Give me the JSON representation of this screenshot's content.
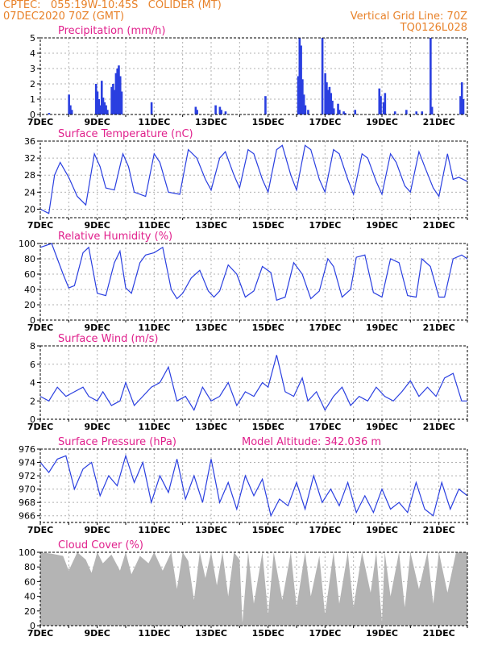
{
  "header": {
    "line1": "CPTEC:   055:19W-10:45S   COLIDER (MT)",
    "line2": "07DEC2020 70Z (GMT)",
    "right1": "Vertical Grid Line: 70Z",
    "right2": "TQ0126L028"
  },
  "colors": {
    "header": "#e8822a",
    "title": "#e0208c",
    "line": "#2a3fe0",
    "bar": "#2a3fe0",
    "cloud": "#b4b4b4",
    "grid": "#b0b0b0"
  },
  "chart_data": [
    {
      "type": "bar",
      "title": "Precipitation (mm/h)",
      "ylim": [
        0,
        5
      ],
      "yticks": [
        0,
        1,
        2,
        3,
        4,
        5
      ],
      "xlim": [
        7,
        22
      ],
      "xtick_labels": [
        "7DEC",
        "9DEC",
        "11DEC",
        "13DEC",
        "15DEC",
        "17DEC",
        "19DEC",
        "21DEC"
      ],
      "x": [
        7.3,
        8.0,
        8.05,
        8.1,
        8.95,
        9.0,
        9.05,
        9.1,
        9.15,
        9.2,
        9.25,
        9.3,
        9.35,
        9.5,
        9.55,
        9.6,
        9.65,
        9.7,
        9.75,
        9.8,
        9.85,
        10.9,
        12.45,
        12.5,
        13.15,
        13.3,
        13.35,
        13.5,
        14.9,
        16.05,
        16.1,
        16.15,
        16.2,
        16.25,
        16.3,
        16.4,
        16.9,
        17.0,
        17.05,
        17.1,
        17.15,
        17.2,
        17.25,
        17.3,
        17.45,
        17.5,
        17.65,
        17.7,
        18.05,
        18.9,
        18.95,
        19.05,
        19.1,
        19.45,
        19.85,
        20.2,
        20.4,
        20.7,
        20.75,
        21.75,
        21.8,
        21.85
      ],
      "values": [
        0.1,
        1.3,
        0.6,
        0.3,
        2.0,
        1.5,
        1.0,
        0.6,
        2.2,
        1.1,
        0.8,
        0.6,
        0.3,
        1.8,
        2.0,
        1.6,
        2.7,
        3.0,
        3.2,
        2.5,
        1.5,
        0.8,
        0.5,
        0.3,
        0.6,
        0.5,
        0.3,
        0.2,
        1.2,
        2.5,
        5.0,
        4.5,
        2.3,
        1.3,
        0.6,
        0.3,
        5.0,
        2.7,
        2.1,
        1.6,
        1.8,
        1.4,
        0.9,
        0.4,
        0.7,
        0.3,
        0.2,
        0.1,
        0.3,
        1.7,
        1.2,
        0.8,
        1.4,
        0.2,
        0.3,
        0.2,
        0.2,
        5.0,
        0.5,
        1.2,
        2.1,
        1.0
      ]
    },
    {
      "type": "line",
      "title": "Surface Temperature (nC)",
      "ylim": [
        18,
        36
      ],
      "yticks": [
        20,
        24,
        28,
        32,
        36
      ],
      "xlim": [
        7,
        22
      ],
      "xtick_labels": [
        "7DEC",
        "9DEC",
        "11DEC",
        "13DEC",
        "15DEC",
        "17DEC",
        "19DEC",
        "21DEC"
      ],
      "x": [
        7.0,
        7.3,
        7.5,
        7.7,
        8.0,
        8.3,
        8.6,
        8.9,
        9.1,
        9.3,
        9.6,
        9.9,
        10.1,
        10.3,
        10.7,
        11.0,
        11.2,
        11.5,
        11.9,
        12.2,
        12.5,
        12.8,
        13.0,
        13.3,
        13.5,
        13.8,
        14.0,
        14.3,
        14.5,
        14.8,
        15.0,
        15.3,
        15.5,
        15.8,
        16.0,
        16.3,
        16.5,
        16.8,
        17.0,
        17.3,
        17.5,
        17.8,
        18.0,
        18.3,
        18.5,
        18.8,
        19.0,
        19.3,
        19.5,
        19.8,
        20.0,
        20.3,
        20.5,
        20.8,
        21.0,
        21.3,
        21.5,
        21.7,
        22.0
      ],
      "values": [
        20.0,
        19.0,
        28.0,
        31.0,
        27.5,
        23.0,
        21.0,
        33.0,
        30.0,
        25.0,
        24.5,
        33.0,
        30.0,
        24.0,
        23.0,
        33.0,
        31.0,
        24.0,
        23.5,
        34.0,
        32.0,
        27.0,
        24.5,
        32.0,
        33.5,
        28.0,
        25.0,
        34.0,
        33.0,
        27.0,
        24.0,
        34.0,
        35.0,
        28.0,
        24.5,
        35.0,
        34.0,
        27.0,
        24.0,
        34.0,
        33.0,
        27.0,
        23.5,
        33.0,
        32.0,
        26.5,
        23.5,
        33.0,
        31.0,
        25.5,
        24.0,
        33.5,
        30.0,
        25.0,
        23.0,
        33.0,
        27.0,
        27.5,
        26.5
      ]
    },
    {
      "type": "line",
      "title": "Relative Humidity (%)",
      "ylim": [
        0,
        100
      ],
      "yticks": [
        0,
        20,
        40,
        60,
        80,
        100
      ],
      "xlim": [
        7,
        22
      ],
      "xtick_labels": [
        "7DEC",
        "9DEC",
        "11DEC",
        "13DEC",
        "15DEC",
        "17DEC",
        "19DEC",
        "21DEC"
      ],
      "x": [
        7.0,
        7.4,
        7.8,
        8.0,
        8.2,
        8.5,
        8.7,
        9.0,
        9.3,
        9.6,
        9.8,
        10.0,
        10.2,
        10.5,
        10.7,
        11.0,
        11.3,
        11.6,
        11.8,
        12.0,
        12.3,
        12.6,
        12.9,
        13.1,
        13.3,
        13.6,
        13.9,
        14.2,
        14.5,
        14.8,
        15.1,
        15.3,
        15.6,
        15.9,
        16.2,
        16.5,
        16.8,
        17.1,
        17.3,
        17.6,
        17.9,
        18.1,
        18.4,
        18.7,
        19.0,
        19.3,
        19.6,
        19.9,
        20.2,
        20.4,
        20.7,
        21.0,
        21.2,
        21.5,
        21.8,
        22.0
      ],
      "values": [
        95.0,
        100.0,
        60.0,
        42.0,
        45.0,
        88.0,
        95.0,
        35.0,
        32.0,
        75.0,
        90.0,
        42.0,
        35.0,
        75.0,
        85.0,
        88.0,
        95.0,
        40.0,
        28.0,
        35.0,
        55.0,
        65.0,
        38.0,
        30.0,
        38.0,
        72.0,
        60.0,
        30.0,
        38.0,
        70.0,
        62.0,
        26.0,
        30.0,
        75.0,
        60.0,
        28.0,
        38.0,
        80.0,
        70.0,
        30.0,
        40.0,
        82.0,
        85.0,
        36.0,
        30.0,
        80.0,
        75.0,
        32.0,
        30.0,
        80.0,
        70.0,
        30.0,
        30.0,
        80.0,
        85.0,
        80.0
      ]
    },
    {
      "type": "line",
      "title": "Surface Wind (m/s)",
      "ylim": [
        0,
        8
      ],
      "yticks": [
        0,
        2,
        4,
        6,
        8
      ],
      "xlim": [
        7,
        22
      ],
      "xtick_labels": [
        "7DEC",
        "9DEC",
        "11DEC",
        "13DEC",
        "15DEC",
        "17DEC",
        "19DEC",
        "21DEC"
      ],
      "x": [
        7.0,
        7.3,
        7.6,
        7.9,
        8.2,
        8.5,
        8.7,
        9.0,
        9.2,
        9.5,
        9.8,
        10.0,
        10.3,
        10.6,
        10.9,
        11.2,
        11.5,
        11.8,
        12.1,
        12.4,
        12.7,
        13.0,
        13.3,
        13.6,
        13.9,
        14.2,
        14.5,
        14.8,
        15.0,
        15.3,
        15.6,
        15.9,
        16.2,
        16.4,
        16.7,
        17.0,
        17.3,
        17.6,
        17.9,
        18.2,
        18.5,
        18.8,
        19.1,
        19.4,
        19.7,
        20.0,
        20.3,
        20.6,
        20.9,
        21.2,
        21.5,
        21.8,
        22.0
      ],
      "values": [
        2.5,
        2.0,
        3.5,
        2.5,
        3.0,
        3.5,
        2.5,
        2.0,
        3.0,
        1.5,
        2.0,
        4.0,
        1.5,
        2.5,
        3.5,
        4.0,
        5.7,
        2.0,
        2.5,
        1.0,
        3.5,
        2.0,
        2.5,
        4.0,
        1.5,
        3.0,
        2.5,
        4.0,
        3.5,
        7.0,
        3.0,
        2.5,
        4.5,
        2.0,
        3.0,
        1.0,
        2.5,
        3.5,
        1.5,
        2.5,
        2.0,
        3.5,
        2.5,
        2.0,
        3.0,
        4.2,
        2.5,
        3.5,
        2.5,
        4.5,
        5.0,
        2.0,
        2.0
      ]
    },
    {
      "type": "line",
      "title": "Surface Pressure (hPa)",
      "annotation": "Model Altitude: 342.036 m",
      "ylim": [
        965,
        976
      ],
      "yticks": [
        966,
        968,
        970,
        972,
        974,
        976
      ],
      "xlim": [
        7,
        22
      ],
      "xtick_labels": [
        "7DEC",
        "9DEC",
        "11DEC",
        "13DEC",
        "15DEC",
        "17DEC",
        "19DEC",
        "21DEC"
      ],
      "x": [
        7.0,
        7.3,
        7.6,
        7.9,
        8.2,
        8.5,
        8.8,
        9.1,
        9.4,
        9.7,
        10.0,
        10.3,
        10.6,
        10.9,
        11.2,
        11.5,
        11.8,
        12.1,
        12.4,
        12.7,
        13.0,
        13.3,
        13.6,
        13.9,
        14.2,
        14.5,
        14.8,
        15.1,
        15.4,
        15.7,
        16.0,
        16.3,
        16.6,
        16.9,
        17.2,
        17.5,
        17.8,
        18.1,
        18.4,
        18.7,
        19.0,
        19.3,
        19.6,
        19.9,
        20.2,
        20.5,
        20.8,
        21.1,
        21.4,
        21.7,
        22.0
      ],
      "values": [
        974.0,
        972.5,
        974.5,
        975.0,
        970.0,
        973.0,
        974.0,
        969.0,
        972.0,
        970.5,
        975.0,
        971.0,
        974.0,
        968.0,
        972.0,
        969.5,
        974.5,
        968.5,
        972.0,
        968.0,
        974.5,
        968.0,
        971.0,
        967.0,
        972.0,
        969.0,
        971.5,
        966.0,
        968.5,
        967.5,
        971.0,
        967.0,
        972.0,
        968.0,
        970.0,
        967.5,
        971.0,
        966.5,
        969.0,
        966.5,
        970.0,
        967.0,
        968.0,
        966.5,
        971.0,
        967.0,
        966.0,
        971.0,
        967.0,
        970.0,
        969.0
      ]
    },
    {
      "type": "area",
      "title": "Cloud Cover (%)",
      "ylim": [
        0,
        100
      ],
      "yticks": [
        0,
        20,
        40,
        60,
        80,
        100
      ],
      "xlim": [
        7,
        22
      ],
      "xtick_labels": [
        "7DEC",
        "9DEC",
        "11DEC",
        "13DEC",
        "15DEC",
        "17DEC",
        "19DEC",
        "21DEC"
      ],
      "x": [
        7.0,
        7.4,
        7.8,
        8.0,
        8.3,
        8.6,
        8.8,
        9.0,
        9.2,
        9.5,
        9.8,
        10.0,
        10.2,
        10.5,
        10.8,
        11.0,
        11.3,
        11.6,
        11.8,
        12.0,
        12.2,
        12.4,
        12.6,
        12.8,
        13.0,
        13.2,
        13.4,
        13.6,
        13.8,
        14.0,
        14.1,
        14.3,
        14.5,
        14.8,
        15.0,
        15.2,
        15.5,
        15.8,
        16.0,
        16.3,
        16.5,
        16.8,
        17.0,
        17.3,
        17.5,
        17.8,
        18.0,
        18.3,
        18.6,
        18.8,
        19.0,
        19.1,
        19.3,
        19.6,
        19.8,
        20.0,
        20.3,
        20.6,
        20.8,
        21.0,
        21.3,
        21.6,
        22.0
      ],
      "values": [
        100,
        98,
        95,
        75,
        100,
        90,
        72,
        100,
        85,
        97,
        75,
        100,
        70,
        95,
        85,
        100,
        75,
        100,
        50,
        100,
        88,
        35,
        100,
        65,
        100,
        55,
        100,
        40,
        100,
        90,
        4,
        100,
        30,
        100,
        15,
        100,
        35,
        100,
        25,
        100,
        40,
        95,
        15,
        100,
        30,
        100,
        25,
        100,
        45,
        100,
        5,
        100,
        40,
        100,
        25,
        100,
        50,
        100,
        30,
        100,
        45,
        100,
        100
      ]
    }
  ]
}
